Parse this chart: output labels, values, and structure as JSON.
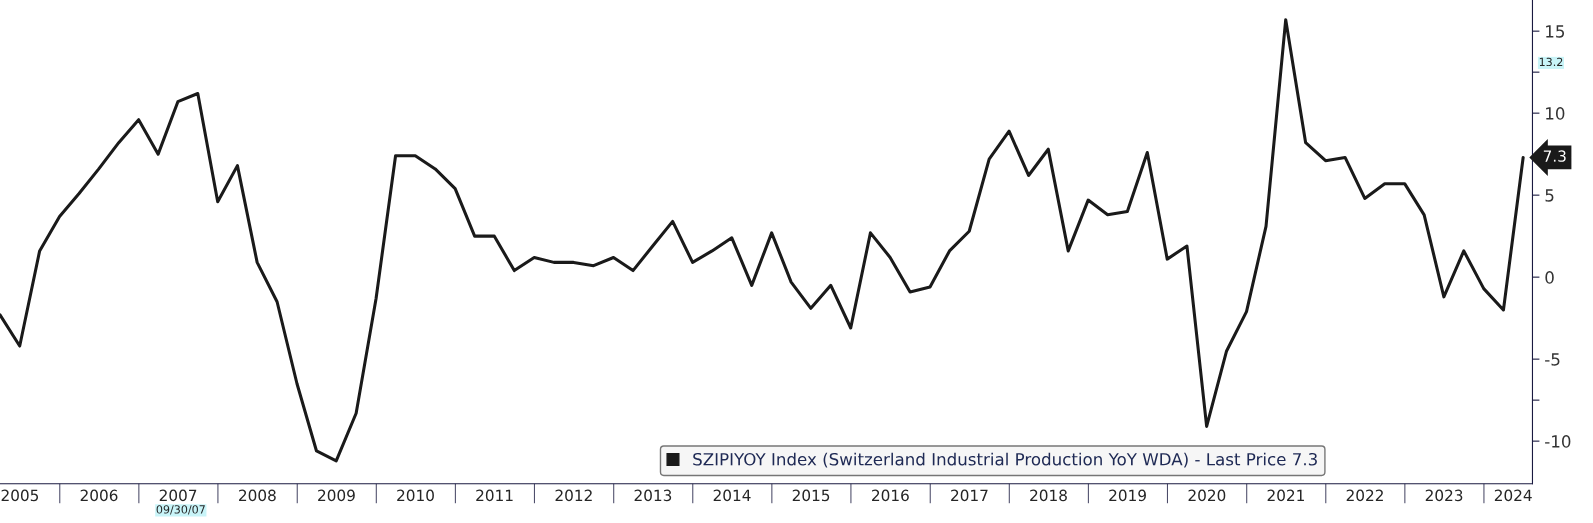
{
  "chart_data": {
    "type": "line",
    "x": [
      "2005-03-31",
      "2005-06-30",
      "2005-09-30",
      "2005-12-31",
      "2006-03-31",
      "2006-06-30",
      "2006-09-30",
      "2006-12-31",
      "2007-03-31",
      "2007-06-30",
      "2007-09-30",
      "2007-12-31",
      "2008-03-31",
      "2008-06-30",
      "2008-09-30",
      "2008-12-31",
      "2009-03-31",
      "2009-06-30",
      "2009-09-30",
      "2009-12-31",
      "2010-03-31",
      "2010-06-30",
      "2010-09-30",
      "2010-12-31",
      "2011-03-31",
      "2011-06-30",
      "2011-09-30",
      "2011-12-31",
      "2012-03-31",
      "2012-06-30",
      "2012-09-30",
      "2012-12-31",
      "2013-03-31",
      "2013-06-30",
      "2013-09-30",
      "2013-12-31",
      "2014-03-31",
      "2014-06-30",
      "2014-09-30",
      "2014-12-31",
      "2015-03-31",
      "2015-06-30",
      "2015-09-30",
      "2015-12-31",
      "2016-03-31",
      "2016-06-30",
      "2016-09-30",
      "2016-12-31",
      "2017-03-31",
      "2017-06-30",
      "2017-09-30",
      "2017-12-31",
      "2018-03-31",
      "2018-06-30",
      "2018-09-30",
      "2018-12-31",
      "2019-03-31",
      "2019-06-30",
      "2019-09-30",
      "2019-12-31",
      "2020-03-31",
      "2020-06-30",
      "2020-09-30",
      "2020-12-31",
      "2021-03-31",
      "2021-06-30",
      "2021-09-30",
      "2021-12-31",
      "2022-03-31",
      "2022-06-30",
      "2022-09-30",
      "2022-12-31",
      "2023-03-31",
      "2023-06-30",
      "2023-09-30",
      "2023-12-31",
      "2024-03-31",
      "2024-06-30"
    ],
    "series": [
      {
        "name": "SZIPIYOY Index (Switzerland Industrial Production YoY WDA) - Last Price 7.3",
        "color": "#1a1a1a",
        "values": [
          -2.3,
          -4.2,
          1.6,
          3.7,
          5.1,
          6.6,
          8.2,
          9.6,
          7.5,
          10.7,
          11.2,
          4.6,
          6.8,
          0.9,
          -1.5,
          -6.5,
          -10.6,
          -11.2,
          -8.3,
          -1.3,
          7.4,
          7.4,
          6.6,
          5.4,
          2.5,
          2.5,
          0.4,
          1.2,
          0.9,
          0.9,
          0.7,
          1.2,
          0.4,
          1.9,
          3.4,
          0.9,
          1.6,
          2.4,
          -0.5,
          2.7,
          -0.3,
          -1.9,
          -0.5,
          -3.1,
          2.7,
          1.2,
          -0.9,
          -0.6,
          1.6,
          2.8,
          7.2,
          8.9,
          6.2,
          7.8,
          1.6,
          4.7,
          3.8,
          4.0,
          7.6,
          1.1,
          1.9,
          -9.1,
          -4.5,
          -2.1,
          3.1,
          15.7,
          8.2,
          7.1,
          7.3,
          4.8,
          5.7,
          5.7,
          3.8,
          -1.2,
          1.6,
          -0.7,
          -2.0,
          7.3
        ],
        "value_labels": [
          null,
          null,
          null,
          null,
          null,
          null,
          null,
          null,
          null,
          null,
          null,
          null,
          null,
          null,
          null,
          null,
          null,
          null,
          null,
          null,
          null,
          null,
          null,
          null,
          null,
          null,
          null,
          null,
          null,
          null,
          null,
          null,
          null,
          null,
          null,
          null,
          null,
          null,
          null,
          null,
          null,
          null,
          null,
          null,
          null,
          null,
          null,
          null,
          null,
          null,
          null,
          null,
          null,
          null,
          null,
          null,
          null,
          null,
          null,
          null,
          null,
          null,
          null,
          null,
          null,
          null,
          null,
          null,
          null,
          null,
          null,
          null,
          null,
          null,
          null,
          null,
          null,
          "7.3"
        ]
      }
    ],
    "xlim": [
      "2005-03-31",
      "2024-08-12"
    ],
    "xticks": [
      {
        "value": "2005-07-01",
        "label": "2005"
      },
      {
        "value": "2006-07-01",
        "label": "2006"
      },
      {
        "value": "2007-07-01",
        "label": "2007"
      },
      {
        "value": "2008-07-01",
        "label": "2008"
      },
      {
        "value": "2009-07-01",
        "label": "2009"
      },
      {
        "value": "2010-07-01",
        "label": "2010"
      },
      {
        "value": "2011-07-01",
        "label": "2011"
      },
      {
        "value": "2012-07-01",
        "label": "2012"
      },
      {
        "value": "2013-07-01",
        "label": "2013"
      },
      {
        "value": "2014-07-01",
        "label": "2014"
      },
      {
        "value": "2015-07-01",
        "label": "2015"
      },
      {
        "value": "2016-07-01",
        "label": "2016"
      },
      {
        "value": "2017-07-01",
        "label": "2017"
      },
      {
        "value": "2018-07-01",
        "label": "2018"
      },
      {
        "value": "2019-07-01",
        "label": "2019"
      },
      {
        "value": "2020-07-01",
        "label": "2020"
      },
      {
        "value": "2021-07-01",
        "label": "2021"
      },
      {
        "value": "2022-07-01",
        "label": "2022"
      },
      {
        "value": "2023-07-01",
        "label": "2023"
      },
      {
        "value": "2024-05-15",
        "label": "2024"
      }
    ],
    "ylim": [
      -12.6,
      16.9
    ],
    "yticks": [
      -10,
      {
        "value": -7.5,
        "label": null
      },
      -5,
      0,
      5,
      10,
      {
        "value": 12.5,
        "label": null
      },
      15
    ],
    "annotations": [
      "13.2",
      "09/30/07"
    ],
    "grid": false,
    "legend": "bottom right",
    "marker": "none",
    "line_style": "solid"
  }
}
